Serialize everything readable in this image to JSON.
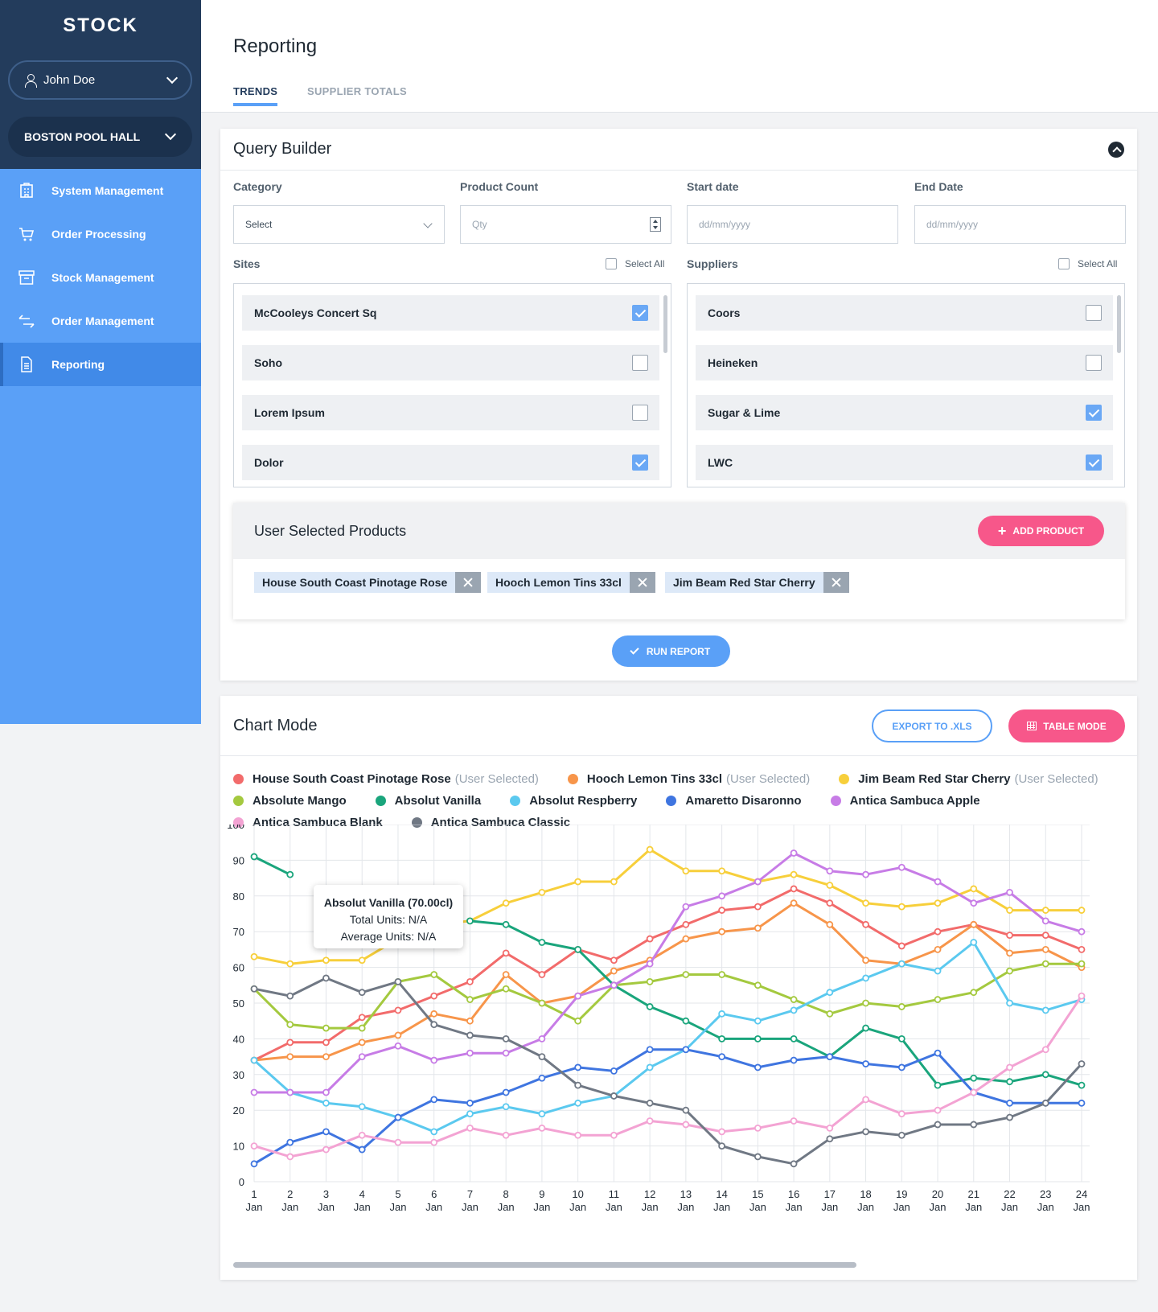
{
  "app": {
    "brand": "STOCK"
  },
  "user": {
    "name": "John Doe"
  },
  "site": {
    "name": "BOSTON POOL HALL"
  },
  "nav": [
    {
      "label": "System Management",
      "icon": "building-icon"
    },
    {
      "label": "Order Processing",
      "icon": "cart-icon"
    },
    {
      "label": "Stock Management",
      "icon": "archive-box-icon"
    },
    {
      "label": "Order Management",
      "icon": "swap-arrows-icon"
    },
    {
      "label": "Reporting",
      "icon": "document-icon",
      "active": true
    }
  ],
  "header": {
    "title": "Reporting",
    "tabs": [
      "TRENDS",
      "SUPPLIER TOTALS"
    ]
  },
  "query": {
    "title": "Query Builder",
    "category": {
      "label": "Category",
      "value": "Select"
    },
    "product_count": {
      "label": "Product Count",
      "placeholder": "Qty"
    },
    "start_date": {
      "label": "Start date",
      "placeholder": "dd/mm/yyyy"
    },
    "end_date": {
      "label": "End Date",
      "placeholder": "dd/mm/yyyy"
    },
    "sites": {
      "label": "Sites",
      "select_all": "Select All",
      "items": [
        {
          "name": "McCooleys Concert Sq",
          "checked": true
        },
        {
          "name": "Soho",
          "checked": false
        },
        {
          "name": "Lorem Ipsum",
          "checked": false
        },
        {
          "name": "Dolor",
          "checked": true
        }
      ]
    },
    "suppliers": {
      "label": "Suppliers",
      "select_all": "Select All",
      "items": [
        {
          "name": "Coors",
          "checked": false
        },
        {
          "name": "Heineken",
          "checked": false
        },
        {
          "name": "Sugar & Lime",
          "checked": true
        },
        {
          "name": "LWC",
          "checked": true
        }
      ]
    },
    "user_products": {
      "title": "User Selected Products",
      "add_label": "ADD PRODUCT",
      "chips": [
        "House South Coast Pinotage Rose",
        "Hooch Lemon Tins 33cl",
        "Jim Beam Red Star Cherry"
      ]
    },
    "run_label": "RUN REPORT"
  },
  "chart_mode": {
    "title": "Chart Mode",
    "export_label": "EXPORT TO .XLS",
    "table_label": "TABLE MODE",
    "user_selected_note": "(User Selected)",
    "tooltip": {
      "title": "Absolut Vanilla (70.00cl)",
      "total": "Total Units: N/A",
      "average": "Average Units: N/A"
    }
  },
  "chart_data": {
    "type": "line",
    "x": [
      "1 Jan",
      "2 Jan",
      "3 Jan",
      "4 Jan",
      "5 Jan",
      "6 Jan",
      "7 Jan",
      "8 Jan",
      "9 Jan",
      "10 Jan",
      "11 Jan",
      "12 Jan",
      "13 Jan",
      "14 Jan",
      "15 Jan",
      "16 Jan",
      "17 Jan",
      "18 Jan",
      "19 Jan",
      "20 Jan",
      "21 Jan",
      "22 Jan",
      "23 Jan",
      "24 Jan"
    ],
    "ylim": [
      0,
      100
    ],
    "yticks": [
      0,
      10,
      20,
      30,
      40,
      50,
      60,
      70,
      80,
      90,
      100
    ],
    "grid": true,
    "legend": "top",
    "series": [
      {
        "name": "House South Coast Pinotage Rose",
        "color": "#f26b6b",
        "user_selected": true,
        "values": [
          34,
          39,
          39,
          46,
          48,
          52,
          56,
          64,
          58,
          65,
          62,
          68,
          72,
          76,
          77,
          82,
          78,
          72,
          66,
          70,
          72,
          69,
          69,
          65
        ]
      },
      {
        "name": "Hooch Lemon Tins 33cl",
        "color": "#f7954a",
        "user_selected": true,
        "values": [
          34,
          35,
          35,
          39,
          41,
          47,
          45,
          58,
          50,
          52,
          59,
          62,
          68,
          70,
          71,
          78,
          72,
          62,
          61,
          65,
          72,
          64,
          65,
          60
        ]
      },
      {
        "name": "Jim Beam Red Star Cherry",
        "color": "#f7cf3b",
        "user_selected": true,
        "values": [
          63,
          61,
          62,
          62,
          68,
          72,
          73,
          78,
          81,
          84,
          84,
          93,
          87,
          87,
          84,
          86,
          83,
          78,
          77,
          78,
          82,
          76,
          76,
          76
        ]
      },
      {
        "name": "Absolute Mango",
        "color": "#a4c93f",
        "values": [
          54,
          44,
          43,
          43,
          56,
          58,
          51,
          54,
          50,
          45,
          55,
          56,
          58,
          58,
          55,
          51,
          47,
          50,
          49,
          51,
          53,
          59,
          61,
          61
        ]
      },
      {
        "name": "Absolut Vanilla",
        "color": "#1aa57c",
        "values": [
          91,
          86,
          null,
          null,
          null,
          null,
          73,
          72,
          67,
          65,
          55,
          49,
          45,
          40,
          40,
          40,
          35,
          43,
          40,
          27,
          29,
          28,
          30,
          27
        ]
      },
      {
        "name": "Absolut Respberry",
        "color": "#5bc9ef",
        "values": [
          34,
          25,
          22,
          21,
          18,
          14,
          19,
          21,
          19,
          22,
          24,
          32,
          37,
          47,
          45,
          48,
          53,
          57,
          61,
          59,
          67,
          50,
          48,
          51
        ]
      },
      {
        "name": "Amaretto Disaronno",
        "color": "#3f75e0",
        "values": [
          5,
          11,
          14,
          9,
          18,
          23,
          22,
          25,
          29,
          32,
          31,
          37,
          37,
          35,
          32,
          34,
          35,
          33,
          32,
          36,
          25,
          22,
          22,
          22
        ]
      },
      {
        "name": "Antica Sambuca Apple",
        "color": "#c77ce6",
        "values": [
          25,
          25,
          25,
          35,
          38,
          34,
          36,
          36,
          40,
          52,
          55,
          61,
          77,
          80,
          84,
          92,
          87,
          86,
          88,
          84,
          78,
          81,
          73,
          70
        ]
      },
      {
        "name": "Antica Sambuca Blank",
        "color": "#f3a3d3",
        "values": [
          10,
          7,
          9,
          13,
          11,
          11,
          15,
          13,
          15,
          13,
          13,
          17,
          16,
          14,
          15,
          17,
          15,
          23,
          19,
          20,
          25,
          32,
          37,
          52
        ]
      },
      {
        "name": "Antica Sambuca Classic",
        "color": "#707884",
        "values": [
          54,
          52,
          57,
          53,
          56,
          44,
          41,
          40,
          35,
          27,
          24,
          22,
          20,
          10,
          7,
          5,
          12,
          14,
          13,
          16,
          16,
          18,
          22,
          33
        ]
      }
    ]
  }
}
